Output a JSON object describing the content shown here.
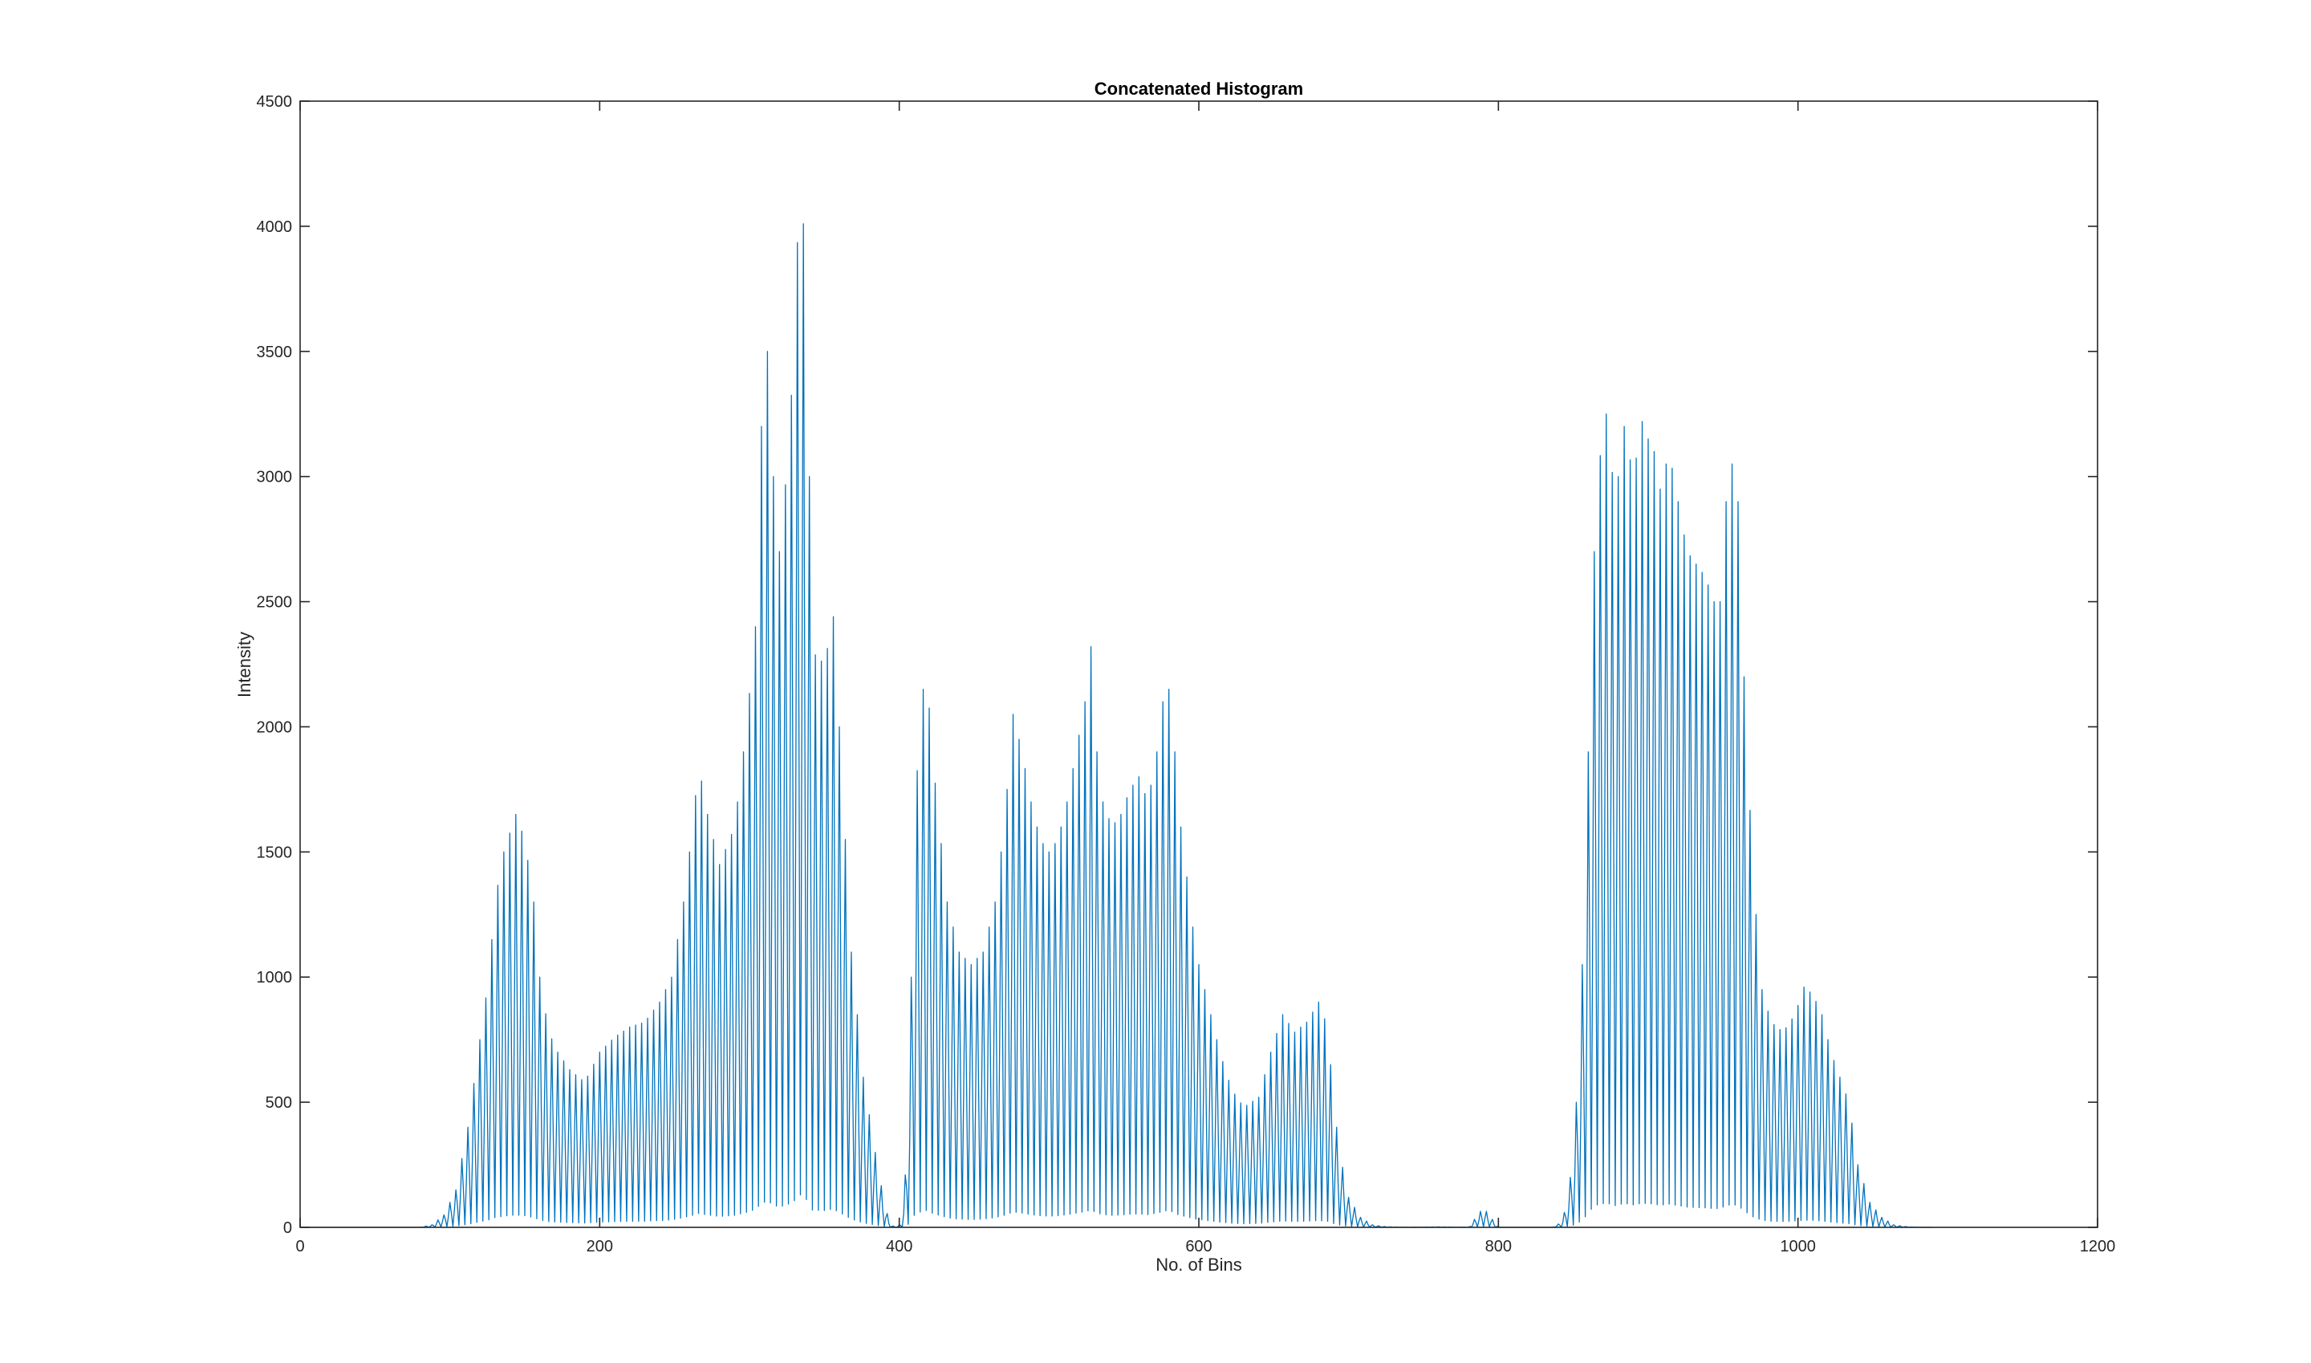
{
  "colors": {
    "series": "#0072BD",
    "axes": "#262626",
    "background": "#ffffff"
  },
  "chart_data": {
    "type": "line",
    "title": "Concatenated Histogram",
    "xlabel": "No. of Bins",
    "ylabel": "Intensity",
    "xlim": [
      0,
      1200
    ],
    "ylim": [
      0,
      4500
    ],
    "xticks": [
      0,
      200,
      400,
      600,
      800,
      1000,
      1200
    ],
    "yticks": [
      0,
      500,
      1000,
      1500,
      2000,
      2500,
      3000,
      3500,
      4000,
      4500
    ],
    "grid": false,
    "legend": "none",
    "bin_period": 4,
    "series": [
      {
        "envelope_x": [
          0,
          80,
          88,
          96,
          104,
          112,
          120,
          126,
          130,
          136,
          144,
          150,
          156,
          160,
          166,
          172,
          180,
          190,
          200,
          210,
          220,
          230,
          240,
          248,
          256,
          262,
          266,
          272,
          280,
          290,
          298,
          304,
          308,
          312,
          316,
          320,
          326,
          330,
          334,
          338,
          342,
          350,
          356,
          360,
          368,
          376,
          384,
          390,
          394,
          398,
          402,
          406,
          410,
          414,
          418,
          422,
          426,
          432,
          440,
          448,
          456,
          464,
          470,
          476,
          482,
          488,
          494,
          500,
          506,
          512,
          518,
          524,
          528,
          532,
          536,
          542,
          548,
          554,
          560,
          566,
          572,
          578,
          582,
          586,
          592,
          598,
          606,
          614,
          622,
          630,
          640,
          648,
          656,
          664,
          672,
          680,
          686,
          690,
          694,
          700,
          708,
          716,
          724,
          732,
          740,
          760,
          780,
          790,
          800,
          810,
          830,
          836,
          842,
          846,
          850,
          854,
          858,
          862,
          866,
          872,
          878,
          884,
          890,
          896,
          900,
          904,
          908,
          914,
          920,
          926,
          932,
          938,
          944,
          948,
          952,
          956,
          960,
          964,
          970,
          976,
          982,
          990,
          998,
          1004,
          1010,
          1016,
          1022,
          1028,
          1034,
          1040,
          1048,
          1056,
          1064,
          1072,
          1080,
          1090,
          1100,
          1110,
          1200
        ],
        "envelope_y": [
          0,
          0,
          10,
          50,
          150,
          400,
          750,
          1000,
          1300,
          1500,
          1650,
          1550,
          1300,
          1000,
          780,
          700,
          630,
          580,
          700,
          760,
          800,
          820,
          900,
          1000,
          1300,
          1600,
          1850,
          1650,
          1450,
          1600,
          2000,
          2400,
          3200,
          3500,
          3000,
          2700,
          3100,
          3550,
          4320,
          3700,
          2300,
          2250,
          2440,
          2000,
          1100,
          600,
          300,
          100,
          10,
          0,
          20,
          400,
          1600,
          2050,
          2250,
          1900,
          1650,
          1300,
          1100,
          1050,
          1100,
          1300,
          1600,
          2050,
          1900,
          1700,
          1550,
          1500,
          1550,
          1700,
          1900,
          2100,
          2320,
          1900,
          1700,
          1600,
          1650,
          1750,
          1800,
          1700,
          1900,
          2200,
          2100,
          1700,
          1400,
          1100,
          900,
          700,
          550,
          480,
          520,
          700,
          850,
          780,
          820,
          900,
          800,
          500,
          300,
          120,
          40,
          10,
          3,
          1,
          0,
          2,
          0,
          80,
          0,
          0,
          0,
          0,
          20,
          100,
          300,
          700,
          1400,
          2400,
          3000,
          3250,
          2900,
          3200,
          3000,
          3220,
          3150,
          3100,
          2950,
          3100,
          2900,
          2700,
          2650,
          2600,
          2500,
          2500,
          2900,
          3050,
          2900,
          2200,
          1400,
          950,
          820,
          780,
          850,
          960,
          930,
          850,
          700,
          600,
          500,
          250,
          100,
          40,
          10,
          3,
          0,
          0
        ]
      }
    ]
  }
}
